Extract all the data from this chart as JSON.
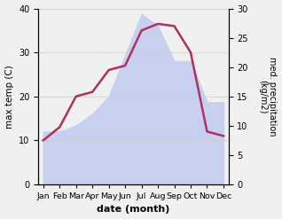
{
  "months": [
    "Jan",
    "Feb",
    "Mar",
    "Apr",
    "May",
    "Jun",
    "Jul",
    "Aug",
    "Sep",
    "Oct",
    "Nov",
    "Dec"
  ],
  "x": [
    0,
    1,
    2,
    3,
    4,
    5,
    6,
    7,
    8,
    9,
    10,
    11
  ],
  "temperature": [
    10.0,
    13.0,
    20.0,
    21.0,
    26.0,
    27.0,
    35.0,
    36.5,
    36.0,
    30.0,
    12.0,
    11.0
  ],
  "precipitation": [
    9.0,
    9.0,
    10.0,
    12.0,
    15.0,
    22.0,
    29.0,
    27.0,
    21.0,
    21.0,
    14.0,
    14.0
  ],
  "temp_color": "#b03060",
  "precip_fill_color": "#c8d0f0",
  "background_color": "#f0f0f0",
  "ylabel_left": "max temp (C)",
  "ylabel_right": "med. precipitation\n(kg/m2)",
  "xlabel": "date (month)",
  "ylim_left": [
    0,
    40
  ],
  "ylim_right": [
    0,
    30
  ],
  "yticks_left": [
    0,
    10,
    20,
    30,
    40
  ],
  "yticks_right": [
    0,
    5,
    10,
    15,
    20,
    25,
    30
  ],
  "temp_linewidth": 1.8,
  "figsize": [
    3.18,
    2.47
  ],
  "dpi": 100
}
